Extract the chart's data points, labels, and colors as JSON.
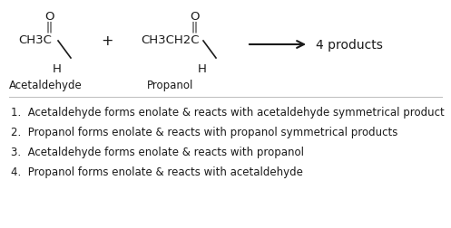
{
  "background_color": "#ffffff",
  "items": [
    "1.  Acetaldehyde forms enolate & reacts with acetaldehyde symmetrical product",
    "2.  Propanol forms enolate & reacts with propanol symmetrical products",
    "3.  Acetaldehyde forms enolate & reacts with propanol",
    "4.  Propanol forms enolate & reacts with acetaldehyde"
  ],
  "arrow_label": "4 products",
  "molecule1_label": "Acetaldehyde",
  "molecule2_label": "Propanol",
  "plus_sign": "+",
  "font_size_chem": 9.5,
  "font_size_list": 8.5,
  "text_color": "#1a1a1a",
  "divider_color": "#bbbbbb"
}
